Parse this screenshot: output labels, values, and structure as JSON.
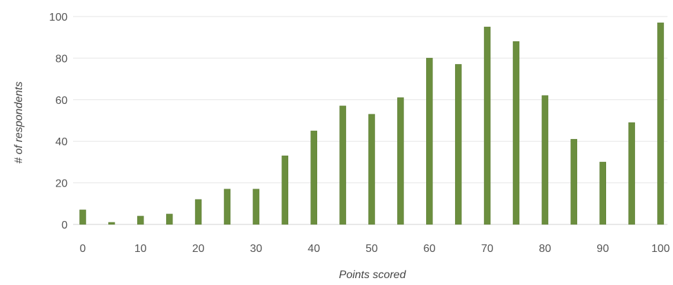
{
  "chart_data": {
    "type": "bar",
    "x": [
      0,
      5,
      10,
      15,
      20,
      25,
      30,
      35,
      40,
      45,
      50,
      55,
      60,
      65,
      70,
      75,
      80,
      85,
      90,
      95,
      100
    ],
    "values": [
      7,
      1,
      4,
      5,
      12,
      17,
      17,
      33,
      45,
      57,
      53,
      61,
      80,
      77,
      95,
      88,
      62,
      41,
      30,
      49,
      97
    ],
    "x_tick_labels": [
      "0",
      "10",
      "20",
      "30",
      "40",
      "50",
      "60",
      "70",
      "80",
      "90",
      "100"
    ],
    "y_tick_labels": [
      "0",
      "20",
      "40",
      "60",
      "80",
      "100"
    ],
    "xlabel": "Points scored",
    "ylabel": "# of respondents",
    "xlim": [
      0,
      100
    ],
    "ylim": [
      0,
      100
    ],
    "grid": "horizontal",
    "legend": "none",
    "colors": {
      "bar": "#6b8e3e",
      "bar_edge": "#5a7a32"
    }
  }
}
